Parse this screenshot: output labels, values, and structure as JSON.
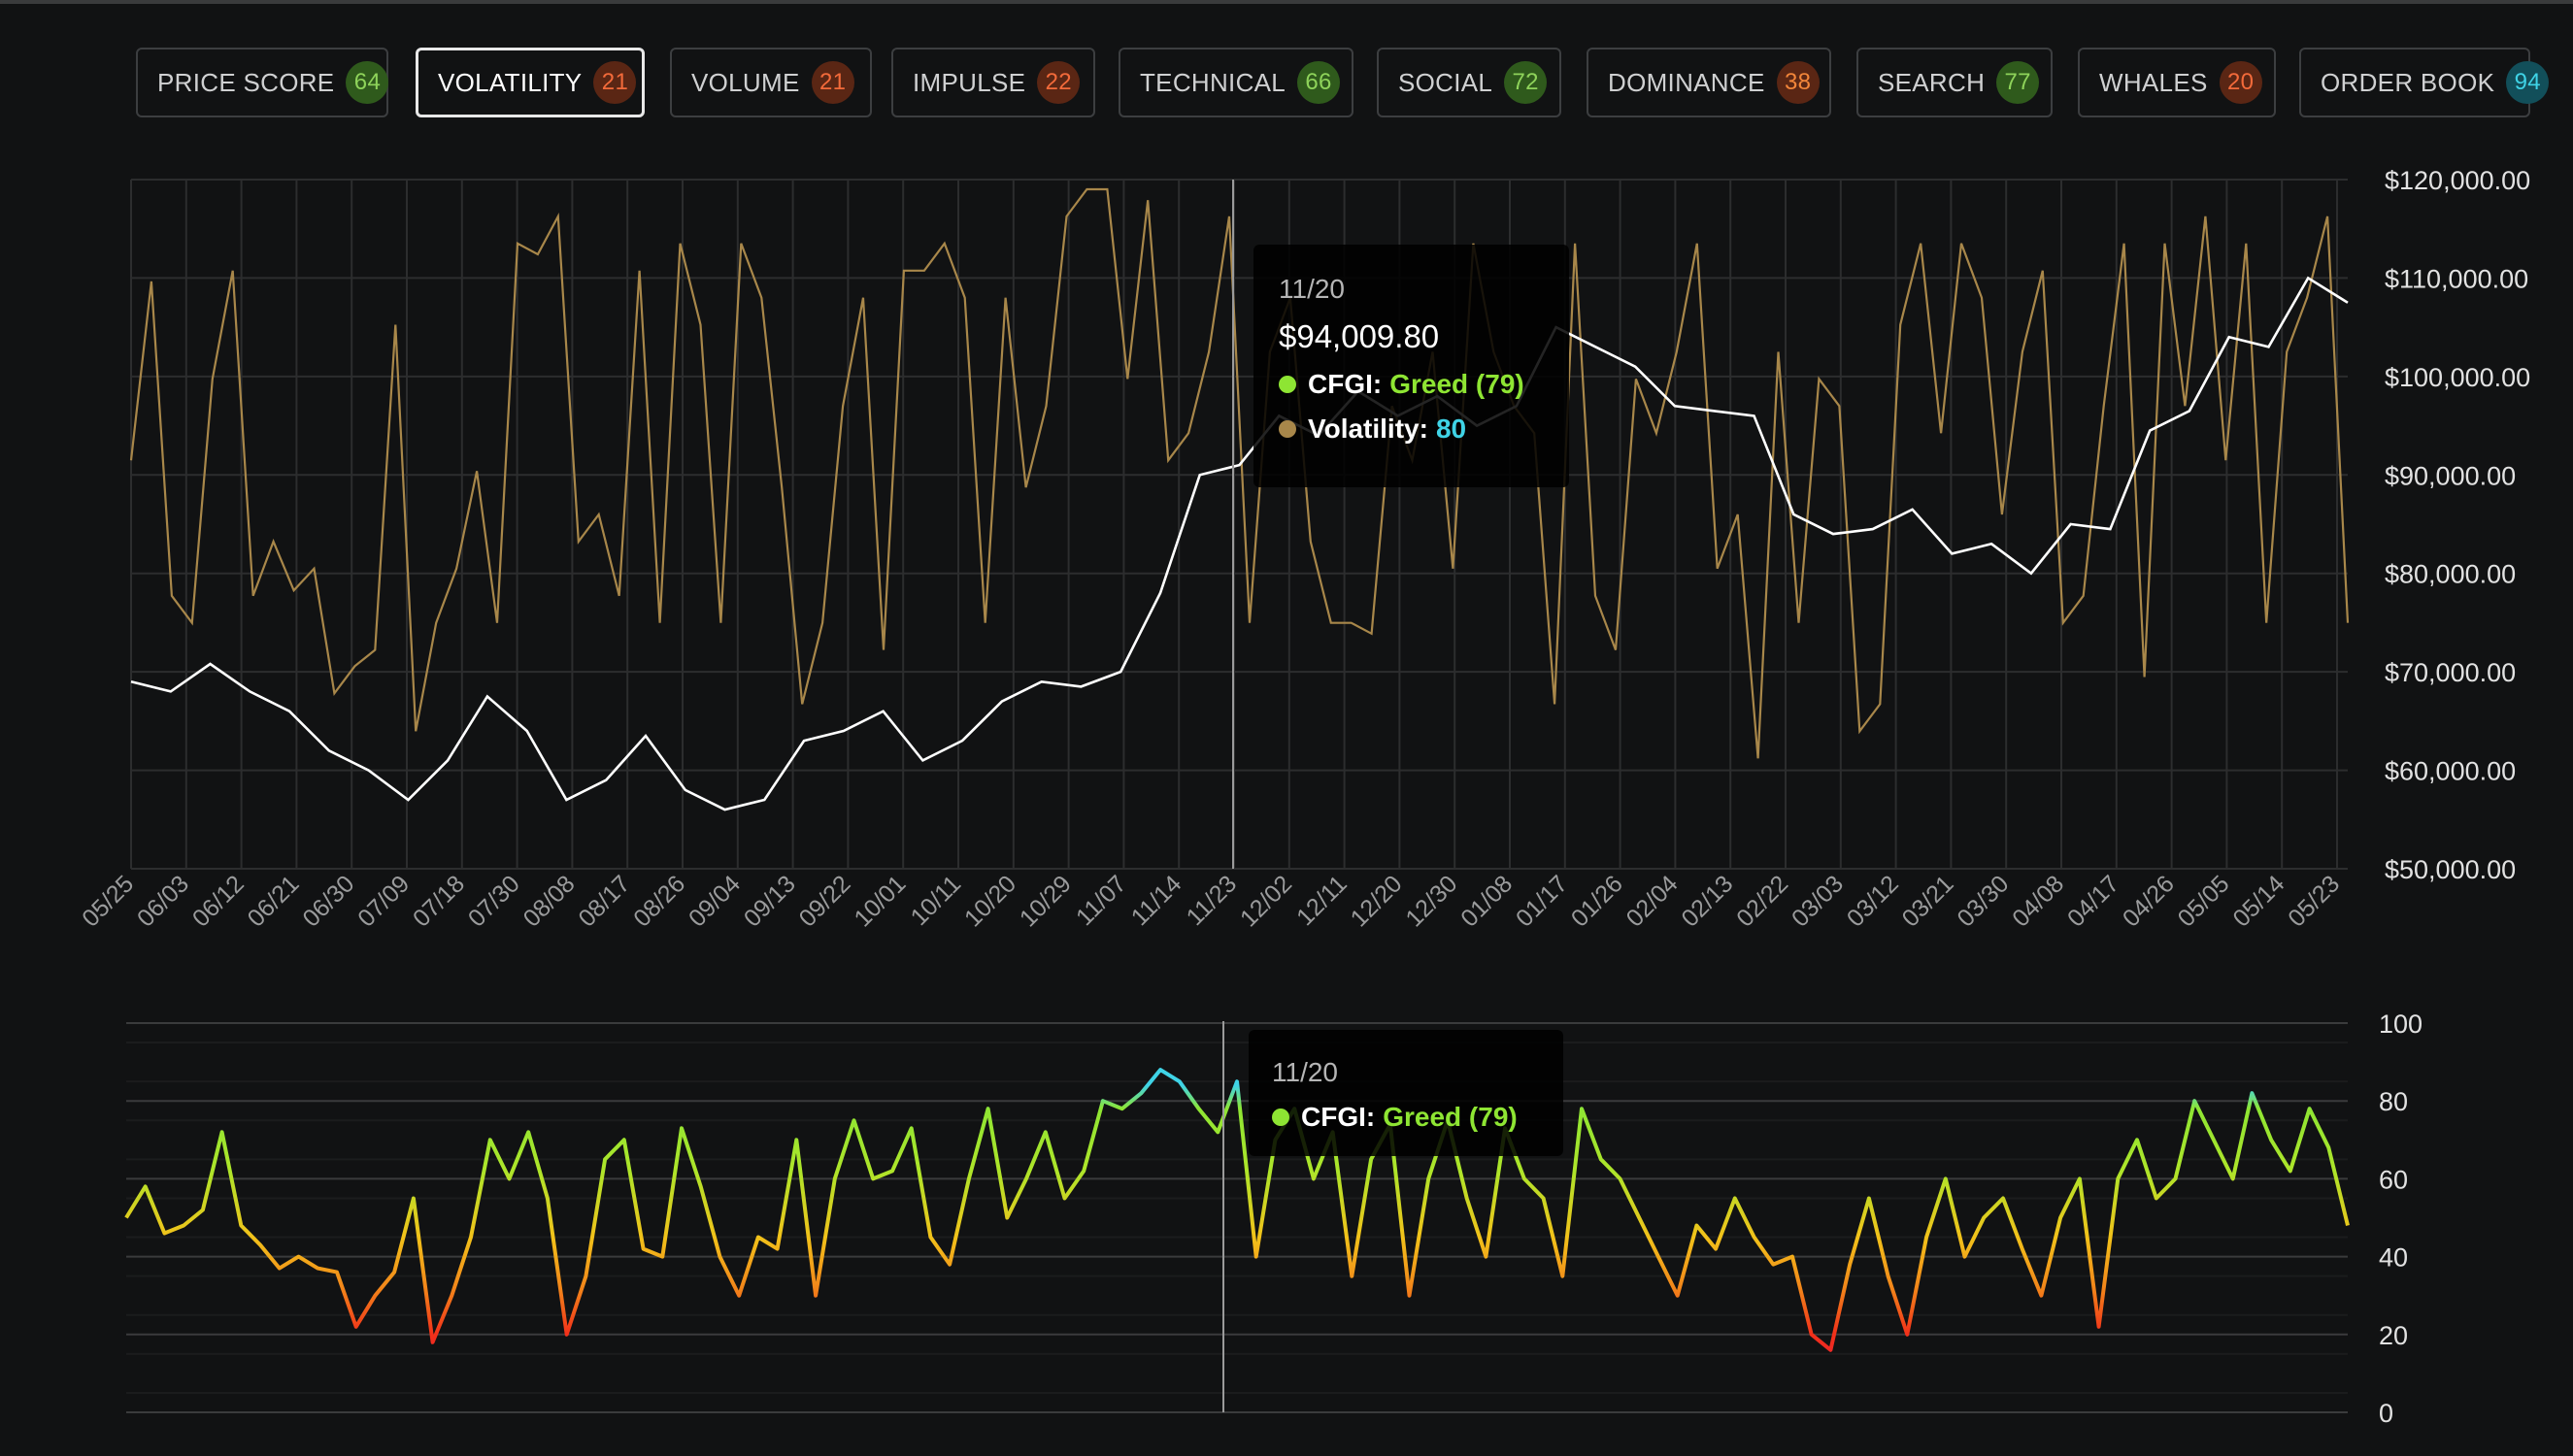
{
  "tabs": [
    {
      "label": "PRICE SCORE",
      "value": "64",
      "badge_color": "#2f5a1c",
      "text_color": "#8ed35a",
      "active": false
    },
    {
      "label": "VOLATILITY",
      "value": "21",
      "badge_color": "#5a2614",
      "text_color": "#f26a3a",
      "active": true
    },
    {
      "label": "VOLUME",
      "value": "21",
      "badge_color": "#5a2614",
      "text_color": "#f26a3a",
      "active": false
    },
    {
      "label": "IMPULSE",
      "value": "22",
      "badge_color": "#5a2614",
      "text_color": "#f26a3a",
      "active": false
    },
    {
      "label": "TECHNICAL",
      "value": "66",
      "badge_color": "#2f5a1c",
      "text_color": "#8ed35a",
      "active": false
    },
    {
      "label": "SOCIAL",
      "value": "72",
      "badge_color": "#2f5a1c",
      "text_color": "#8ed35a",
      "active": false
    },
    {
      "label": "DOMINANCE",
      "value": "38",
      "badge_color": "#5a2614",
      "text_color": "#f2863a",
      "active": false
    },
    {
      "label": "SEARCH",
      "value": "77",
      "badge_color": "#2f5a1c",
      "text_color": "#8ed35a",
      "active": false
    },
    {
      "label": "WHALES",
      "value": "20",
      "badge_color": "#5a2614",
      "text_color": "#f26a3a",
      "active": false
    },
    {
      "label": "ORDER BOOK",
      "value": "94",
      "badge_color": "#124f5a",
      "text_color": "#3fd3e6",
      "active": false
    }
  ],
  "colors": {
    "background": "#111213",
    "price_line": "#ffffff",
    "volatility_line": "#a8874a",
    "greed": "#8ee533",
    "volatility_value": "#3fd3e6"
  },
  "tooltip_top": {
    "date": "11/20",
    "price": "$94,009.80",
    "cfgi_label": "CFGI:",
    "cfgi_value": "Greed (79)",
    "vol_label": "Volatility:",
    "vol_value": "80"
  },
  "tooltip_bottom": {
    "date": "11/20",
    "cfgi_label": "CFGI:",
    "cfgi_value": "Greed (79)"
  },
  "chart_data": [
    {
      "type": "line",
      "x_tick_labels": [
        "05/25",
        "06/03",
        "06/12",
        "06/21",
        "06/30",
        "07/09",
        "07/18",
        "07/30",
        "08/08",
        "08/17",
        "08/26",
        "09/04",
        "09/13",
        "09/22",
        "10/01",
        "10/11",
        "10/20",
        "10/29",
        "11/07",
        "11/14",
        "11/23",
        "12/02",
        "12/11",
        "12/20",
        "12/30",
        "01/08",
        "01/17",
        "01/26",
        "02/04",
        "02/13",
        "02/22",
        "03/03",
        "03/12",
        "03/21",
        "03/30",
        "04/08",
        "04/17",
        "04/26",
        "05/05",
        "05/14",
        "05/23"
      ],
      "ylim": [
        50000,
        120000
      ],
      "y_tick_labels": [
        "$50,000.00",
        "$60,000.00",
        "$70,000.00",
        "$80,000.00",
        "$90,000.00",
        "$100,000.00",
        "$110,000.00",
        "$120,000.00"
      ],
      "grid": true,
      "series": [
        {
          "values": [
            69000,
            68000,
            70800,
            68000,
            66000,
            62000,
            60000,
            57000,
            61000,
            67500,
            64000,
            57000,
            59000,
            63500,
            58000,
            56000,
            57000,
            63000,
            64000,
            66000,
            61000,
            63000,
            67000,
            69000,
            68500,
            70000,
            78000,
            90000,
            91000,
            96000,
            94000,
            98500,
            96000,
            98000,
            95000,
            97000,
            105000,
            103000,
            101000,
            97000,
            96500,
            96000,
            86000,
            84000,
            84500,
            86500,
            82000,
            83000,
            80000,
            85000,
            84500,
            94500,
            96500,
            104000,
            103000,
            110000,
            107500
          ]
        },
        {
          "values": [
            70,
            103,
            45,
            40,
            85,
            105,
            45,
            55,
            46,
            50,
            27,
            32,
            35,
            95,
            20,
            40,
            50,
            68,
            40,
            110,
            108,
            115,
            55,
            60,
            45,
            105,
            40,
            110,
            95,
            40,
            110,
            100,
            65,
            25,
            40,
            80,
            100,
            35,
            105,
            105,
            110,
            100,
            40,
            100,
            65,
            80,
            115,
            120,
            120,
            85,
            118,
            70,
            75,
            90,
            115,
            40,
            90,
            100,
            55,
            40,
            40,
            38,
            80,
            70,
            90,
            50,
            110,
            90,
            80,
            75,
            25,
            110,
            45,
            35,
            85,
            75,
            90,
            110,
            50,
            60,
            15,
            90,
            40,
            85,
            80,
            20,
            25,
            95,
            110,
            75,
            110,
            100,
            60,
            90,
            105,
            40,
            45,
            80,
            110,
            30,
            110,
            80,
            115,
            70,
            110,
            40,
            90,
            100,
            115,
            40
          ]
        }
      ]
    },
    {
      "type": "line",
      "ylim": [
        0,
        100
      ],
      "y_tick_labels": [
        "0",
        "20",
        "40",
        "60",
        "80",
        "100"
      ],
      "grid": true,
      "series": [
        {
          "values": [
            50,
            58,
            46,
            48,
            52,
            72,
            48,
            43,
            37,
            40,
            37,
            36,
            22,
            30,
            36,
            55,
            18,
            30,
            45,
            70,
            60,
            72,
            55,
            20,
            35,
            65,
            70,
            42,
            40,
            73,
            58,
            40,
            30,
            45,
            42,
            70,
            30,
            60,
            75,
            60,
            62,
            73,
            45,
            38,
            60,
            78,
            50,
            60,
            72,
            55,
            62,
            80,
            78,
            82,
            88,
            85,
            78,
            72,
            85,
            40,
            70,
            78,
            60,
            72,
            35,
            65,
            74,
            30,
            60,
            75,
            55,
            40,
            73,
            60,
            55,
            35,
            78,
            65,
            60,
            50,
            40,
            30,
            48,
            42,
            55,
            45,
            38,
            40,
            20,
            16,
            38,
            55,
            35,
            20,
            45,
            60,
            40,
            50,
            55,
            42,
            30,
            50,
            60,
            22,
            60,
            70,
            55,
            60,
            80,
            70,
            60,
            82,
            70,
            62,
            78,
            68,
            48
          ]
        }
      ]
    }
  ]
}
